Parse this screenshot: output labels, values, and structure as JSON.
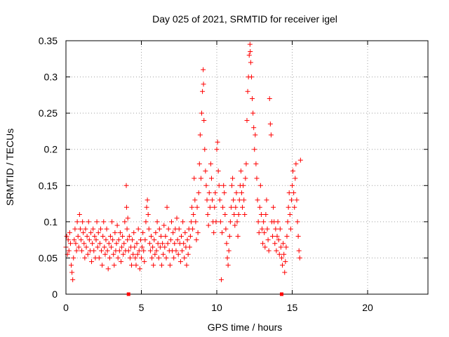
{
  "chart_data": {
    "type": "scatter",
    "title": "Day 025 of 2021, SRMTID for receiver igel",
    "xlabel": "GPS time / hours",
    "ylabel": "SRMTID / TECUs",
    "xlim": [
      0,
      24
    ],
    "ylim": [
      0,
      0.35
    ],
    "x_ticks": [
      0,
      5,
      10,
      15,
      20
    ],
    "x_tick_labels": [
      "0",
      "5",
      "10",
      "15",
      "20"
    ],
    "y_ticks": [
      0,
      0.05,
      0.1,
      0.15,
      0.2,
      0.25,
      0.3,
      0.35
    ],
    "y_tick_labels": [
      "0",
      "0.05",
      "0.1",
      "0.15",
      "0.2",
      "0.25",
      "0.3",
      "0.35"
    ],
    "grid": true,
    "marker": "+",
    "colors": {
      "series": "#ff0000",
      "frame": "#000000",
      "grid": "#a0a0a0"
    },
    "x_axis_markers": [
      4.15,
      14.3
    ],
    "series": [
      {
        "name": "SRMTID",
        "points": [
          [
            0.0,
            0.065
          ],
          [
            0.05,
            0.08
          ],
          [
            0.1,
            0.055
          ],
          [
            0.15,
            0.075
          ],
          [
            0.2,
            0.06
          ],
          [
            0.25,
            0.085
          ],
          [
            0.3,
            0.07
          ],
          [
            0.35,
            0.04
          ],
          [
            0.4,
            0.03
          ],
          [
            0.45,
            0.02
          ],
          [
            0.5,
            0.05
          ],
          [
            0.55,
            0.075
          ],
          [
            0.6,
            0.09
          ],
          [
            0.65,
            0.07
          ],
          [
            0.7,
            0.06
          ],
          [
            0.75,
            0.1
          ],
          [
            0.8,
            0.08
          ],
          [
            0.85,
            0.065
          ],
          [
            0.9,
            0.11
          ],
          [
            0.95,
            0.09
          ],
          [
            1.0,
            0.075
          ],
          [
            1.05,
            0.06
          ],
          [
            1.1,
            0.1
          ],
          [
            1.15,
            0.085
          ],
          [
            1.2,
            0.07
          ],
          [
            1.25,
            0.05
          ],
          [
            1.3,
            0.09
          ],
          [
            1.35,
            0.065
          ],
          [
            1.4,
            0.08
          ],
          [
            1.45,
            0.055
          ],
          [
            1.5,
            0.1
          ],
          [
            1.55,
            0.075
          ],
          [
            1.6,
            0.06
          ],
          [
            1.65,
            0.085
          ],
          [
            1.7,
            0.045
          ],
          [
            1.75,
            0.07
          ],
          [
            1.8,
            0.09
          ],
          [
            1.85,
            0.06
          ],
          [
            1.9,
            0.08
          ],
          [
            1.95,
            0.05
          ],
          [
            2.0,
            0.075
          ],
          [
            2.05,
            0.1
          ],
          [
            2.1,
            0.065
          ],
          [
            2.15,
            0.085
          ],
          [
            2.2,
            0.05
          ],
          [
            2.25,
            0.07
          ],
          [
            2.3,
            0.09
          ],
          [
            2.35,
            0.06
          ],
          [
            2.4,
            0.04
          ],
          [
            2.45,
            0.08
          ],
          [
            2.5,
            0.1
          ],
          [
            2.55,
            0.065
          ],
          [
            2.6,
            0.055
          ],
          [
            2.65,
            0.075
          ],
          [
            2.7,
            0.09
          ],
          [
            2.75,
            0.06
          ],
          [
            2.8,
            0.035
          ],
          [
            2.85,
            0.07
          ],
          [
            2.9,
            0.05
          ],
          [
            2.95,
            0.08
          ],
          [
            3.0,
            0.065
          ],
          [
            3.05,
            0.1
          ],
          [
            3.1,
            0.075
          ],
          [
            3.15,
            0.055
          ],
          [
            3.2,
            0.04
          ],
          [
            3.25,
            0.085
          ],
          [
            3.3,
            0.06
          ],
          [
            3.35,
            0.07
          ],
          [
            3.4,
            0.095
          ],
          [
            3.45,
            0.05
          ],
          [
            3.5,
            0.075
          ],
          [
            3.55,
            0.06
          ],
          [
            3.6,
            0.085
          ],
          [
            3.65,
            0.045
          ],
          [
            3.7,
            0.065
          ],
          [
            3.75,
            0.08
          ],
          [
            3.8,
            0.055
          ],
          [
            3.85,
            0.07
          ],
          [
            3.9,
            0.1
          ],
          [
            3.95,
            0.06
          ],
          [
            4.0,
            0.15
          ],
          [
            4.02,
            0.12
          ],
          [
            4.05,
            0.09
          ],
          [
            4.08,
            0.075
          ],
          [
            4.1,
            0.105
          ],
          [
            4.15,
            0.06
          ],
          [
            4.2,
            0.08
          ],
          [
            4.25,
            0.05
          ],
          [
            4.3,
            0.065
          ],
          [
            4.35,
            0.04
          ],
          [
            4.4,
            0.075
          ],
          [
            4.45,
            0.055
          ],
          [
            4.5,
            0.085
          ],
          [
            4.55,
            0.065
          ],
          [
            4.6,
            0.05
          ],
          [
            4.65,
            0.04
          ],
          [
            4.7,
            0.07
          ],
          [
            4.75,
            0.055
          ],
          [
            4.8,
            0.09
          ],
          [
            4.85,
            0.06
          ],
          [
            4.9,
            0.035
          ],
          [
            4.95,
            0.075
          ],
          [
            5.0,
            0.05
          ],
          [
            5.05,
            0.065
          ],
          [
            5.1,
            0.085
          ],
          [
            5.15,
            0.06
          ],
          [
            5.2,
            0.045
          ],
          [
            5.25,
            0.075
          ],
          [
            5.3,
            0.1
          ],
          [
            5.35,
            0.12
          ],
          [
            5.4,
            0.13
          ],
          [
            5.45,
            0.11
          ],
          [
            5.5,
            0.09
          ],
          [
            5.55,
            0.07
          ],
          [
            5.6,
            0.06
          ],
          [
            5.65,
            0.08
          ],
          [
            5.7,
            0.05
          ],
          [
            5.75,
            0.065
          ],
          [
            5.8,
            0.04
          ],
          [
            5.85,
            0.075
          ],
          [
            5.9,
            0.055
          ],
          [
            5.95,
            0.085
          ],
          [
            6.0,
            0.06
          ],
          [
            6.05,
            0.1
          ],
          [
            6.1,
            0.07
          ],
          [
            6.15,
            0.05
          ],
          [
            6.2,
            0.09
          ],
          [
            6.25,
            0.065
          ],
          [
            6.3,
            0.08
          ],
          [
            6.35,
            0.04
          ],
          [
            6.4,
            0.07
          ],
          [
            6.45,
            0.055
          ],
          [
            6.5,
            0.095
          ],
          [
            6.55,
            0.065
          ],
          [
            6.6,
            0.08
          ],
          [
            6.65,
            0.05
          ],
          [
            6.7,
            0.12
          ],
          [
            6.75,
            0.07
          ],
          [
            6.8,
            0.09
          ],
          [
            6.85,
            0.06
          ],
          [
            6.9,
            0.04
          ],
          [
            6.95,
            0.075
          ],
          [
            7.0,
            0.1
          ],
          [
            7.05,
            0.06
          ],
          [
            7.1,
            0.085
          ],
          [
            7.15,
            0.05
          ],
          [
            7.2,
            0.07
          ],
          [
            7.25,
            0.09
          ],
          [
            7.3,
            0.06
          ],
          [
            7.35,
            0.105
          ],
          [
            7.4,
            0.075
          ],
          [
            7.45,
            0.055
          ],
          [
            7.5,
            0.09
          ],
          [
            7.55,
            0.07
          ],
          [
            7.6,
            0.045
          ],
          [
            7.65,
            0.08
          ],
          [
            7.7,
            0.06
          ],
          [
            7.75,
            0.1
          ],
          [
            7.8,
            0.07
          ],
          [
            7.85,
            0.05
          ],
          [
            7.9,
            0.085
          ],
          [
            7.95,
            0.065
          ],
          [
            8.0,
            0.04
          ],
          [
            8.05,
            0.075
          ],
          [
            8.1,
            0.055
          ],
          [
            8.15,
            0.09
          ],
          [
            8.2,
            0.065
          ],
          [
            8.25,
            0.08
          ],
          [
            8.3,
            0.1
          ],
          [
            8.35,
            0.12
          ],
          [
            8.4,
            0.09
          ],
          [
            8.45,
            0.11
          ],
          [
            8.5,
            0.16
          ],
          [
            8.55,
            0.13
          ],
          [
            8.6,
            0.1
          ],
          [
            8.65,
            0.075
          ],
          [
            8.7,
            0.12
          ],
          [
            8.75,
            0.085
          ],
          [
            8.8,
            0.14
          ],
          [
            8.85,
            0.18
          ],
          [
            8.9,
            0.22
          ],
          [
            8.95,
            0.16
          ],
          [
            9.0,
            0.25
          ],
          [
            9.05,
            0.28
          ],
          [
            9.1,
            0.31
          ],
          [
            9.12,
            0.29
          ],
          [
            9.15,
            0.24
          ],
          [
            9.2,
            0.2
          ],
          [
            9.25,
            0.17
          ],
          [
            9.3,
            0.15
          ],
          [
            9.35,
            0.13
          ],
          [
            9.4,
            0.11
          ],
          [
            9.45,
            0.095
          ],
          [
            9.5,
            0.14
          ],
          [
            9.55,
            0.12
          ],
          [
            9.6,
            0.18
          ],
          [
            9.65,
            0.16
          ],
          [
            9.7,
            0.13
          ],
          [
            9.75,
            0.1
          ],
          [
            9.8,
            0.085
          ],
          [
            9.85,
            0.12
          ],
          [
            9.9,
            0.14
          ],
          [
            9.95,
            0.1
          ],
          [
            10.0,
            0.2
          ],
          [
            10.05,
            0.21
          ],
          [
            10.1,
            0.17
          ],
          [
            10.15,
            0.15
          ],
          [
            10.2,
            0.13
          ],
          [
            10.25,
            0.1
          ],
          [
            10.3,
            0.02
          ],
          [
            10.35,
            0.085
          ],
          [
            10.4,
            0.12
          ],
          [
            10.45,
            0.15
          ],
          [
            10.5,
            0.14
          ],
          [
            10.55,
            0.11
          ],
          [
            10.6,
            0.09
          ],
          [
            10.65,
            0.07
          ],
          [
            10.7,
            0.05
          ],
          [
            10.75,
            0.04
          ],
          [
            10.8,
            0.06
          ],
          [
            10.85,
            0.08
          ],
          [
            10.9,
            0.1
          ],
          [
            10.95,
            0.12
          ],
          [
            11.0,
            0.15
          ],
          [
            11.05,
            0.16
          ],
          [
            11.1,
            0.13
          ],
          [
            11.15,
            0.11
          ],
          [
            11.2,
            0.095
          ],
          [
            11.25,
            0.12
          ],
          [
            11.3,
            0.14
          ],
          [
            11.35,
            0.1
          ],
          [
            11.4,
            0.08
          ],
          [
            11.45,
            0.11
          ],
          [
            11.5,
            0.13
          ],
          [
            11.55,
            0.15
          ],
          [
            11.6,
            0.17
          ],
          [
            11.65,
            0.14
          ],
          [
            11.7,
            0.12
          ],
          [
            11.75,
            0.15
          ],
          [
            11.8,
            0.13
          ],
          [
            11.85,
            0.11
          ],
          [
            11.9,
            0.16
          ],
          [
            11.95,
            0.18
          ],
          [
            12.0,
            0.24
          ],
          [
            12.05,
            0.28
          ],
          [
            12.1,
            0.3
          ],
          [
            12.15,
            0.33
          ],
          [
            12.2,
            0.345
          ],
          [
            12.22,
            0.335
          ],
          [
            12.25,
            0.32
          ],
          [
            12.3,
            0.3
          ],
          [
            12.35,
            0.27
          ],
          [
            12.4,
            0.25
          ],
          [
            12.45,
            0.23
          ],
          [
            12.5,
            0.2
          ],
          [
            12.55,
            0.22
          ],
          [
            12.6,
            0.18
          ],
          [
            12.65,
            0.16
          ],
          [
            12.7,
            0.13
          ],
          [
            12.75,
            0.1
          ],
          [
            12.8,
            0.085
          ],
          [
            12.85,
            0.12
          ],
          [
            12.9,
            0.15
          ],
          [
            12.95,
            0.11
          ],
          [
            13.0,
            0.09
          ],
          [
            13.05,
            0.07
          ],
          [
            13.1,
            0.1
          ],
          [
            13.15,
            0.085
          ],
          [
            13.2,
            0.065
          ],
          [
            13.25,
            0.11
          ],
          [
            13.3,
            0.13
          ],
          [
            13.35,
            0.09
          ],
          [
            13.4,
            0.075
          ],
          [
            13.45,
            0.06
          ],
          [
            13.5,
            0.27
          ],
          [
            13.55,
            0.235
          ],
          [
            13.6,
            0.22
          ],
          [
            13.65,
            0.1
          ],
          [
            13.7,
            0.08
          ],
          [
            13.75,
            0.12
          ],
          [
            13.8,
            0.1
          ],
          [
            13.85,
            0.07
          ],
          [
            13.9,
            0.09
          ],
          [
            13.95,
            0.06
          ],
          [
            14.0,
            0.08
          ],
          [
            14.05,
            0.1
          ],
          [
            14.1,
            0.075
          ],
          [
            14.15,
            0.055
          ],
          [
            14.2,
            0.09
          ],
          [
            14.25,
            0.065
          ],
          [
            14.3,
            0.05
          ],
          [
            14.35,
            0.04
          ],
          [
            14.4,
            0.07
          ],
          [
            14.45,
            0.055
          ],
          [
            14.5,
            0.03
          ],
          [
            14.55,
            0.045
          ],
          [
            14.6,
            0.065
          ],
          [
            14.65,
            0.08
          ],
          [
            14.7,
            0.1
          ],
          [
            14.75,
            0.12
          ],
          [
            14.8,
            0.14
          ],
          [
            14.85,
            0.11
          ],
          [
            14.9,
            0.09
          ],
          [
            14.95,
            0.13
          ],
          [
            15.0,
            0.15
          ],
          [
            15.05,
            0.17
          ],
          [
            15.1,
            0.14
          ],
          [
            15.15,
            0.12
          ],
          [
            15.2,
            0.16
          ],
          [
            15.25,
            0.18
          ],
          [
            15.3,
            0.13
          ],
          [
            15.35,
            0.1
          ],
          [
            15.4,
            0.08
          ],
          [
            15.45,
            0.06
          ],
          [
            15.5,
            0.05
          ],
          [
            15.55,
            0.185
          ]
        ]
      }
    ]
  }
}
